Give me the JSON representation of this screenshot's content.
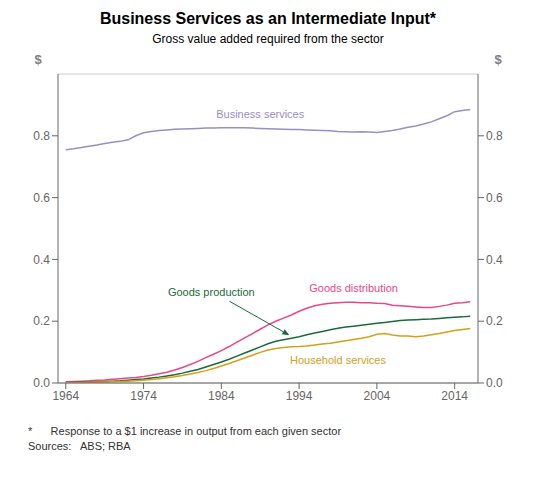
{
  "chart_data": {
    "type": "line",
    "title": "Business Services as an Intermediate Input*",
    "subtitle": "Gross value added required from the sector",
    "annotations": [
      "*      Response to a $1 increase in output from each given sector",
      "Sources:   ABS; RBA"
    ],
    "ylabel": "$",
    "y2label": "$",
    "grid": "y",
    "xlim": [
      1963,
      2017
    ],
    "xticks": [
      1964,
      1974,
      1984,
      1994,
      2004,
      2014
    ],
    "ylim": [
      0.0,
      1.0
    ],
    "yticks": [
      {
        "value": 0.0,
        "label": "0.0"
      },
      0.2,
      0.4,
      0.6,
      0.8
    ],
    "y2lim": [
      0.0,
      1.0
    ],
    "y2ticks": [
      {
        "value": 0.0,
        "label": "0.0"
      },
      0.2,
      0.4,
      0.6,
      0.8
    ],
    "x": [
      1964,
      1965,
      1966,
      1967,
      1968,
      1969,
      1970,
      1971,
      1972,
      1973,
      1974,
      1975,
      1976,
      1977,
      1978,
      1979,
      1980,
      1981,
      1982,
      1983,
      1984,
      1985,
      1986,
      1987,
      1988,
      1989,
      1990,
      1991,
      1992,
      1993,
      1994,
      1995,
      1996,
      1997,
      1998,
      1999,
      2000,
      2001,
      2002,
      2003,
      2004,
      2005,
      2006,
      2007,
      2008,
      2009,
      2010,
      2011,
      2012,
      2013,
      2014,
      2015,
      2016
    ],
    "series": [
      {
        "name": "Business services",
        "color": "#9b8ec4",
        "values": [
          0.755,
          0.758,
          0.762,
          0.766,
          0.77,
          0.775,
          0.779,
          0.782,
          0.787,
          0.8,
          0.81,
          0.814,
          0.817,
          0.819,
          0.821,
          0.822,
          0.823,
          0.824,
          0.825,
          0.825,
          0.826,
          0.826,
          0.826,
          0.826,
          0.825,
          0.824,
          0.823,
          0.822,
          0.821,
          0.82,
          0.82,
          0.819,
          0.818,
          0.817,
          0.816,
          0.814,
          0.813,
          0.812,
          0.813,
          0.812,
          0.811,
          0.814,
          0.817,
          0.822,
          0.828,
          0.832,
          0.838,
          0.845,
          0.855,
          0.865,
          0.878,
          0.882,
          0.885
        ]
      },
      {
        "name": "Goods distribution",
        "color": "#e8488a",
        "values": [
          0.004,
          0.005,
          0.006,
          0.007,
          0.009,
          0.01,
          0.012,
          0.014,
          0.016,
          0.018,
          0.021,
          0.025,
          0.03,
          0.035,
          0.042,
          0.05,
          0.06,
          0.07,
          0.082,
          0.093,
          0.105,
          0.118,
          0.132,
          0.146,
          0.16,
          0.174,
          0.188,
          0.2,
          0.21,
          0.22,
          0.232,
          0.242,
          0.25,
          0.255,
          0.258,
          0.26,
          0.261,
          0.261,
          0.26,
          0.26,
          0.258,
          0.257,
          0.252,
          0.25,
          0.248,
          0.246,
          0.244,
          0.244,
          0.248,
          0.252,
          0.258,
          0.26,
          0.263
        ]
      },
      {
        "name": "Goods production",
        "color": "#1a6b3c",
        "values": [
          0.002,
          0.002,
          0.003,
          0.003,
          0.004,
          0.005,
          0.006,
          0.007,
          0.009,
          0.011,
          0.013,
          0.016,
          0.019,
          0.023,
          0.027,
          0.032,
          0.038,
          0.044,
          0.052,
          0.06,
          0.068,
          0.077,
          0.087,
          0.097,
          0.107,
          0.117,
          0.127,
          0.135,
          0.14,
          0.145,
          0.15,
          0.156,
          0.162,
          0.167,
          0.172,
          0.177,
          0.181,
          0.184,
          0.187,
          0.19,
          0.193,
          0.196,
          0.199,
          0.202,
          0.204,
          0.205,
          0.206,
          0.207,
          0.209,
          0.211,
          0.213,
          0.214,
          0.216
        ]
      },
      {
        "name": "Household services",
        "color": "#d4a017",
        "values": [
          0.001,
          0.001,
          0.002,
          0.002,
          0.003,
          0.003,
          0.004,
          0.005,
          0.006,
          0.007,
          0.009,
          0.011,
          0.014,
          0.017,
          0.02,
          0.024,
          0.029,
          0.034,
          0.04,
          0.047,
          0.055,
          0.063,
          0.072,
          0.081,
          0.09,
          0.099,
          0.107,
          0.112,
          0.115,
          0.117,
          0.118,
          0.12,
          0.123,
          0.126,
          0.129,
          0.133,
          0.137,
          0.141,
          0.145,
          0.15,
          0.158,
          0.16,
          0.155,
          0.152,
          0.152,
          0.15,
          0.152,
          0.156,
          0.16,
          0.165,
          0.17,
          0.173,
          0.176
        ]
      }
    ]
  }
}
